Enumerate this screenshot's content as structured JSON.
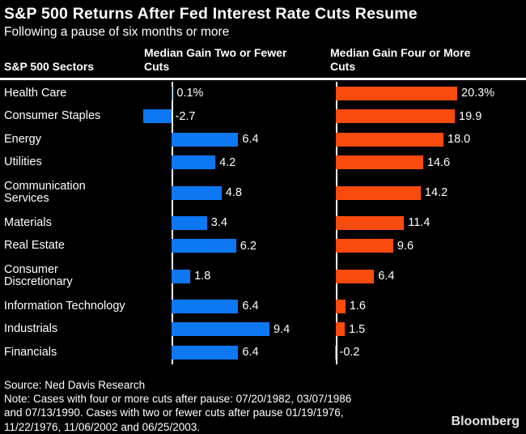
{
  "title": "S&P 500 Returns After Fed Interest Rate Cuts Resume",
  "subtitle": "Following a pause of six months or more",
  "columns": {
    "sectors": "S&P 500 Sectors",
    "two_or_fewer": "Median Gain Two or Fewer Cuts",
    "four_or_more": "Median Gain Four or More Cuts"
  },
  "chart_data": {
    "type": "bar",
    "orientation": "horizontal",
    "title": "S&P 500 Returns After Fed Interest Rate Cuts Resume",
    "subtitle": "Following a pause of six months or more",
    "unit": "%",
    "categories": [
      "Health Care",
      "Consumer Staples",
      "Energy",
      "Utilities",
      "Communication\nServices",
      "Materials",
      "Real Estate",
      "Consumer\nDiscretionary",
      "Information Technology",
      "Industrials",
      "Financials"
    ],
    "series": [
      {
        "name": "Median Gain Two or Fewer Cuts",
        "color": "#0d78f2",
        "values": [
          0.1,
          -2.7,
          6.4,
          4.2,
          4.8,
          3.4,
          6.2,
          1.8,
          6.4,
          9.4,
          6.4
        ],
        "labels": [
          "0.1%",
          "-2.7",
          "6.4",
          "4.2",
          "4.8",
          "3.4",
          "6.2",
          "1.8",
          "6.4",
          "9.4",
          "6.4"
        ]
      },
      {
        "name": "Median Gain Four or More Cuts",
        "color": "#fa4b0e",
        "values": [
          20.3,
          19.9,
          18.0,
          14.6,
          14.2,
          11.4,
          9.6,
          6.4,
          1.6,
          1.5,
          -0.2
        ],
        "labels": [
          "20.3%",
          "19.9",
          "18.0",
          "14.6",
          "14.2",
          "11.4",
          "9.6",
          "6.4",
          "1.6",
          "1.5",
          "-0.2"
        ]
      }
    ]
  },
  "footer": {
    "source": "Source: Ned Davis Research",
    "note_lines": [
      "Note: Cases with four or more cuts after pause: 07/20/1982, 03/07/1986",
      "and 07/13/1990. Cases with two or fewer cuts after pause 01/19/1976,",
      "11/22/1976, 11/06/2002 and 06/25/2003."
    ]
  },
  "brand": "Bloomberg",
  "colors": {
    "background": "#000000",
    "bar_blue": "#0d78f2",
    "bar_orange": "#fa4b0e",
    "text": "#ffffff",
    "axis": "#ffffff"
  }
}
